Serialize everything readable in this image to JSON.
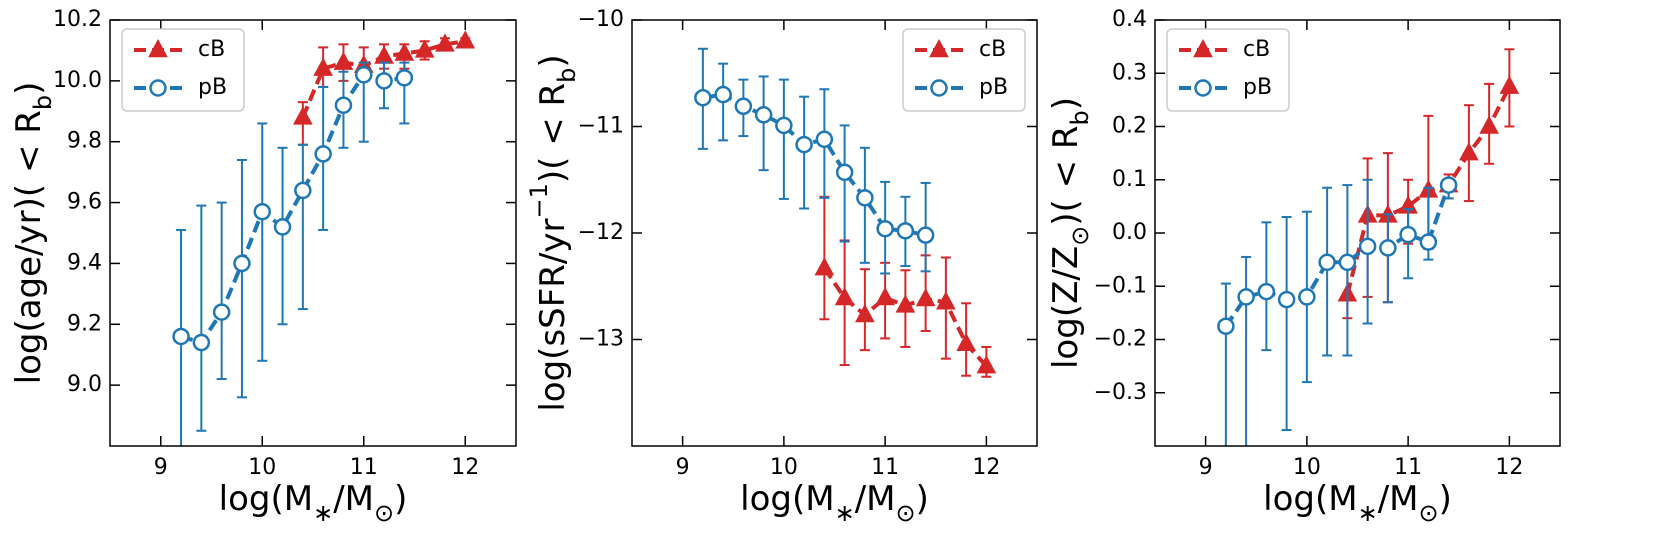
{
  "chart_data": [
    {
      "type": "line",
      "xlabel": [
        {
          "text": "log(M"
        },
        {
          "text": "∗",
          "shift": "sub"
        },
        {
          "text": "/M"
        },
        {
          "text": "⊙",
          "shift": "sub"
        },
        {
          "text": ")"
        }
      ],
      "ylabel": [
        {
          "text": "log(age/yr)( < R"
        },
        {
          "text": "b",
          "shift": "sub"
        },
        {
          "text": ")"
        }
      ],
      "xlim": [
        8.5,
        12.5
      ],
      "xticks": [
        9,
        10,
        11,
        12
      ],
      "ylim": [
        8.8,
        10.2
      ],
      "yticks": [
        {
          "value": 9,
          "label": "9.0"
        },
        9.2,
        9.4,
        9.6,
        9.8,
        {
          "value": 10,
          "label": "10.0"
        },
        10.2
      ],
      "legend": "upper left",
      "series": [
        {
          "name": "cB",
          "color": "#d62728",
          "marker": "triangle",
          "x": [
            10.4,
            10.6,
            10.8,
            11.0,
            11.2,
            11.4,
            11.6,
            11.8,
            12.0
          ],
          "values": [
            9.88,
            10.04,
            10.06,
            10.05,
            10.08,
            10.09,
            10.1,
            10.12,
            10.13
          ],
          "lower": [
            9.79,
            9.98,
            10.0,
            10.01,
            10.04,
            10.04,
            10.07,
            10.1,
            10.12
          ],
          "upper": [
            9.93,
            10.11,
            10.12,
            10.11,
            10.12,
            10.12,
            10.13,
            10.14,
            10.14
          ]
        },
        {
          "name": "pB",
          "color": "#1f77b4",
          "marker": "circle",
          "x": [
            9.2,
            9.4,
            9.6,
            9.8,
            10.0,
            10.2,
            10.4,
            10.6,
            10.8,
            11.0,
            11.2,
            11.4
          ],
          "values": [
            9.16,
            9.14,
            9.24,
            9.4,
            9.57,
            9.52,
            9.64,
            9.76,
            9.92,
            10.02,
            10.0,
            10.01
          ],
          "lower": [
            8.75,
            8.85,
            9.02,
            8.96,
            9.08,
            9.2,
            9.25,
            9.51,
            9.78,
            9.8,
            9.91,
            9.86
          ],
          "upper": [
            9.51,
            9.59,
            9.6,
            9.74,
            9.86,
            9.78,
            9.79,
            9.98,
            10.03,
            10.06,
            10.06,
            10.06
          ]
        }
      ]
    },
    {
      "type": "line",
      "xlabel": [
        {
          "text": "log(M"
        },
        {
          "text": "∗",
          "shift": "sub"
        },
        {
          "text": "/M"
        },
        {
          "text": "⊙",
          "shift": "sub"
        },
        {
          "text": ")"
        }
      ],
      "ylabel": [
        {
          "text": "log(sSFR/yr"
        },
        {
          "text": "−1",
          "shift": "super"
        },
        {
          "text": ")( < R"
        },
        {
          "text": "b",
          "shift": "sub"
        },
        {
          "text": ")"
        }
      ],
      "xlim": [
        8.5,
        12.5
      ],
      "xticks": [
        9,
        10,
        11,
        12
      ],
      "ylim": [
        -14,
        -10
      ],
      "yticks": [
        {
          "value": -13,
          "label": "−13"
        },
        {
          "value": -12,
          "label": "−12"
        },
        {
          "value": -11,
          "label": "−11"
        },
        {
          "value": -10,
          "label": "−10"
        }
      ],
      "legend": "upper right",
      "series": [
        {
          "name": "cB",
          "color": "#d62728",
          "marker": "triangle",
          "x": [
            10.4,
            10.6,
            10.8,
            11.0,
            11.2,
            11.4,
            11.6,
            11.8,
            12.0
          ],
          "values": [
            -12.33,
            -12.61,
            -12.77,
            -12.61,
            -12.68,
            -12.62,
            -12.65,
            -13.04,
            -13.25
          ],
          "lower": [
            -12.81,
            -13.24,
            -13.1,
            -12.99,
            -13.07,
            -12.92,
            -13.18,
            -13.34,
            -13.35
          ],
          "upper": [
            -11.66,
            -12.07,
            -12.34,
            -12.28,
            -12.35,
            -12.21,
            -12.23,
            -12.66,
            -13.07
          ]
        },
        {
          "name": "pB",
          "color": "#1f77b4",
          "marker": "circle",
          "x": [
            9.2,
            9.4,
            9.6,
            9.8,
            10.0,
            10.2,
            10.4,
            10.6,
            10.8,
            11.0,
            11.2,
            11.4
          ],
          "values": [
            -10.73,
            -10.7,
            -10.81,
            -10.89,
            -10.99,
            -11.17,
            -11.12,
            -11.43,
            -11.67,
            -11.96,
            -11.98,
            -12.02
          ],
          "lower": [
            -11.21,
            -11.13,
            -11.09,
            -11.41,
            -11.68,
            -11.77,
            -11.67,
            -12.08,
            -12.28,
            -12.38,
            -12.31,
            -12.36
          ],
          "upper": [
            -10.27,
            -10.41,
            -10.56,
            -10.53,
            -10.56,
            -10.72,
            -10.65,
            -10.99,
            -11.2,
            -11.52,
            -11.66,
            -11.53
          ]
        }
      ]
    },
    {
      "type": "line",
      "xlabel": [
        {
          "text": "log(M"
        },
        {
          "text": "∗",
          "shift": "sub"
        },
        {
          "text": "/M"
        },
        {
          "text": "⊙",
          "shift": "sub"
        },
        {
          "text": ")"
        }
      ],
      "ylabel": [
        {
          "text": "log(Z/Z"
        },
        {
          "text": "⊙",
          "shift": "sub"
        },
        {
          "text": ")( < R"
        },
        {
          "text": "b",
          "shift": "sub"
        },
        {
          "text": ")"
        }
      ],
      "xlim": [
        8.5,
        12.5
      ],
      "xticks": [
        9,
        10,
        11,
        12
      ],
      "ylim": [
        -0.4,
        0.4
      ],
      "yticks": [
        {
          "value": -0.3,
          "label": "−0.3"
        },
        {
          "value": -0.2,
          "label": "−0.2"
        },
        {
          "value": -0.1,
          "label": "−0.1"
        },
        {
          "value": 0,
          "label": "0.0"
        },
        0.1,
        0.2,
        0.3,
        0.4
      ],
      "legend": "upper left",
      "series": [
        {
          "name": "cB",
          "color": "#d62728",
          "marker": "triangle",
          "x": [
            10.4,
            10.6,
            10.8,
            11.0,
            11.2,
            11.4,
            11.6,
            11.8,
            12.0
          ],
          "values": [
            -0.115,
            0.033,
            0.033,
            0.05,
            0.08,
            0.09,
            0.15,
            0.2,
            0.275
          ],
          "lower": [
            -0.16,
            -0.12,
            -0.13,
            -0.02,
            -0.03,
            0.065,
            0.06,
            0.13,
            0.2
          ],
          "upper": [
            -0.06,
            0.14,
            0.15,
            0.1,
            0.22,
            0.11,
            0.24,
            0.28,
            0.345
          ]
        },
        {
          "name": "pB",
          "color": "#1f77b4",
          "marker": "circle",
          "x": [
            9.2,
            9.4,
            9.6,
            9.8,
            10.0,
            10.2,
            10.4,
            10.6,
            10.8,
            11.0,
            11.2,
            11.4
          ],
          "values": [
            -0.175,
            -0.12,
            -0.11,
            -0.125,
            -0.12,
            -0.055,
            -0.055,
            -0.025,
            -0.028,
            -0.003,
            -0.017,
            0.09
          ],
          "lower": [
            -0.42,
            -0.42,
            -0.22,
            -0.37,
            -0.28,
            -0.23,
            -0.23,
            -0.17,
            -0.13,
            -0.085,
            -0.05,
            0.065
          ],
          "upper": [
            -0.095,
            -0.045,
            0.02,
            0.03,
            0.04,
            0.085,
            0.09,
            0.1,
            0.035,
            0.045,
            0.085,
            0.1
          ]
        }
      ]
    }
  ]
}
